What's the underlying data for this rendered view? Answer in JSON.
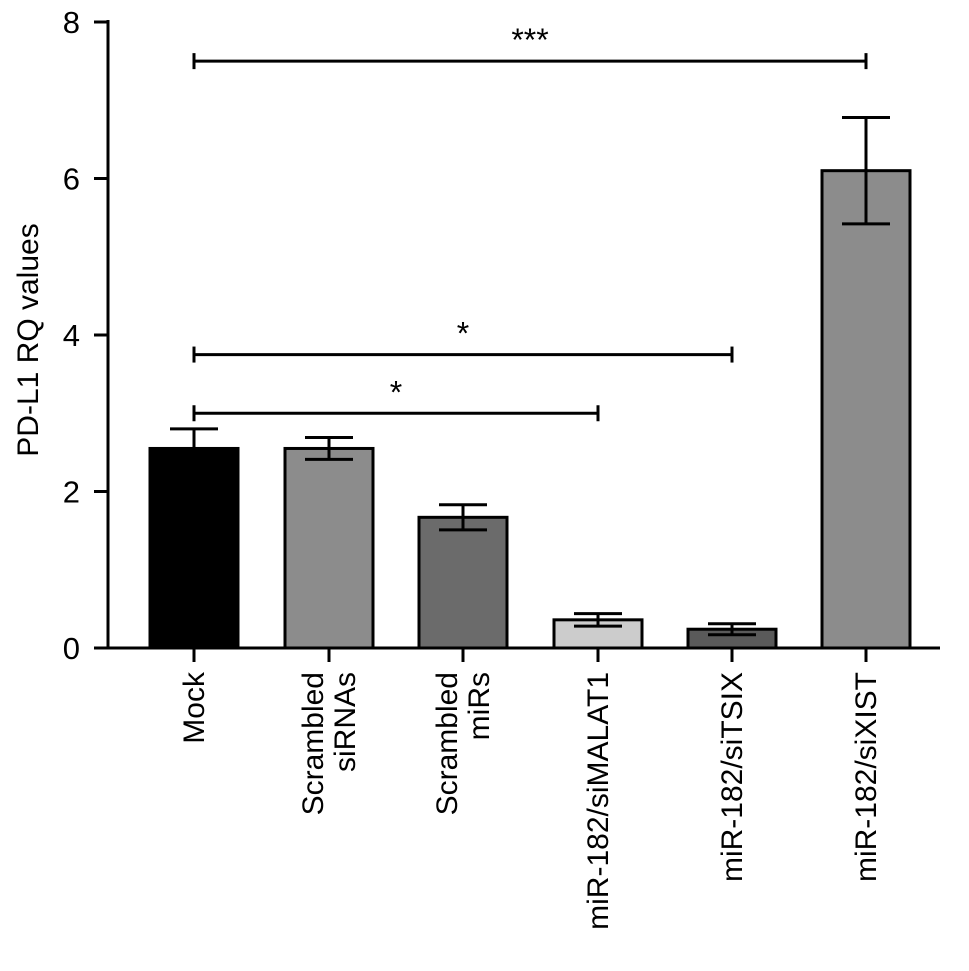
{
  "chart_data": {
    "type": "bar",
    "ylabel": "PD-L1 RQ values",
    "ylim": [
      0,
      8
    ],
    "yticks": [
      0,
      2,
      4,
      6,
      8
    ],
    "categories": [
      {
        "lines": [
          "Mock"
        ]
      },
      {
        "lines": [
          "Scrambled",
          "siRNAs"
        ]
      },
      {
        "lines": [
          "Scrambled",
          "miRs"
        ]
      },
      {
        "lines": [
          "miR-182/siMALAT1"
        ]
      },
      {
        "lines": [
          "miR-182/siTSIX"
        ]
      },
      {
        "lines": [
          "miR-182/siXIST"
        ]
      }
    ],
    "values": [
      2.55,
      2.55,
      1.67,
      0.36,
      0.24,
      6.1
    ],
    "errors": [
      0.25,
      0.14,
      0.16,
      0.08,
      0.07,
      0.68
    ],
    "colors": [
      "#000000",
      "#8c8c8c",
      "#6b6b6b",
      "#cccccc",
      "#5a5a5a",
      "#8c8c8c"
    ],
    "significance": [
      {
        "from": 0,
        "to": 5,
        "y": 7.5,
        "label": "***"
      },
      {
        "from": 0,
        "to": 4,
        "y": 3.75,
        "label": "*"
      },
      {
        "from": 0,
        "to": 3,
        "y": 3.0,
        "label": "*"
      }
    ]
  }
}
